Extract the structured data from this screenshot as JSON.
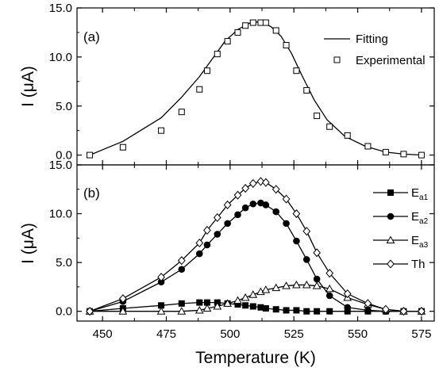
{
  "chart_data": [
    {
      "panel": "top",
      "type": "line+scatter",
      "label": "(a)",
      "xlabel": "Temperature (K)",
      "ylabel": "I (μA)",
      "xlim": [
        440,
        580
      ],
      "ylim": [
        -1,
        15
      ],
      "yticks": [
        0,
        5,
        10,
        15
      ],
      "ytick_labels": [
        "0.0",
        "5.0",
        "10.0",
        "15.0"
      ],
      "legend_position": "top-right",
      "series": [
        {
          "name": "Fitting",
          "style": "line",
          "x": [
            445,
            458,
            473,
            481,
            488,
            493,
            498,
            503,
            508,
            512,
            516,
            520,
            524,
            528,
            533,
            538,
            545,
            553,
            561,
            568,
            575
          ],
          "values": [
            0.0,
            1.4,
            3.8,
            5.9,
            8.0,
            9.8,
            11.6,
            12.8,
            13.5,
            13.6,
            13.1,
            12.1,
            10.4,
            8.2,
            5.6,
            3.6,
            1.9,
            0.9,
            0.3,
            0.1,
            0.0
          ]
        },
        {
          "name": "Experimental",
          "style": "marker",
          "marker": "open-square",
          "x": [
            445,
            458,
            473,
            481,
            488,
            491,
            495,
            499,
            503,
            506,
            509,
            512,
            514,
            518,
            522,
            526,
            530,
            534,
            539,
            546,
            554,
            561,
            568,
            575
          ],
          "values": [
            0.0,
            0.8,
            2.5,
            4.4,
            6.7,
            8.6,
            10.3,
            11.6,
            12.5,
            13.2,
            13.5,
            13.5,
            13.5,
            12.7,
            11.2,
            8.6,
            6.6,
            4.0,
            2.9,
            2.0,
            0.9,
            0.3,
            0.1,
            0.0
          ]
        }
      ]
    },
    {
      "panel": "bottom",
      "type": "line+scatter",
      "label": "(b)",
      "xlabel": "Temperature (K)",
      "ylabel": "I (μA)",
      "xlim": [
        440,
        580
      ],
      "ylim": [
        -1,
        15
      ],
      "yticks": [
        0,
        5,
        10,
        15
      ],
      "ytick_labels": [
        "0.0",
        "5.0",
        "10.0",
        "15.0"
      ],
      "xticks": [
        450,
        475,
        500,
        525,
        550,
        575
      ],
      "xtick_labels": [
        "450",
        "475",
        "500",
        "525",
        "550",
        "575"
      ],
      "legend_position": "top-right",
      "series": [
        {
          "name": "E",
          "subscript": "a1",
          "marker": "filled-square",
          "x": [
            445,
            458,
            473,
            481,
            488,
            491,
            495,
            499,
            503,
            506,
            509,
            512,
            514,
            518,
            522,
            526,
            530,
            534,
            539,
            546,
            554,
            561,
            568,
            575
          ],
          "values": [
            0.0,
            0.3,
            0.6,
            0.8,
            0.9,
            0.9,
            0.9,
            0.8,
            0.7,
            0.6,
            0.5,
            0.4,
            0.3,
            0.2,
            0.1,
            0.1,
            0.0,
            0.0,
            0.0,
            0.0,
            0.0,
            0.0,
            0.0,
            0.0
          ]
        },
        {
          "name": "E",
          "subscript": "a2",
          "marker": "filled-circle",
          "x": [
            445,
            458,
            473,
            481,
            488,
            491,
            495,
            499,
            503,
            506,
            509,
            512,
            514,
            518,
            522,
            526,
            530,
            534,
            539,
            546,
            554,
            561,
            568,
            575
          ],
          "values": [
            0.0,
            1.0,
            3.0,
            4.3,
            5.9,
            6.8,
            7.9,
            9.0,
            9.9,
            10.6,
            11.0,
            11.1,
            10.9,
            10.2,
            9.0,
            7.2,
            5.3,
            3.3,
            1.6,
            0.4,
            0.1,
            0.0,
            0.0,
            0.0
          ]
        },
        {
          "name": "E",
          "subscript": "a3",
          "marker": "open-triangle",
          "x": [
            445,
            458,
            473,
            481,
            488,
            491,
            495,
            499,
            503,
            506,
            509,
            512,
            514,
            518,
            522,
            526,
            530,
            534,
            539,
            546,
            554,
            561,
            568,
            575
          ],
          "values": [
            0.0,
            0.0,
            0.0,
            0.0,
            0.1,
            0.3,
            0.5,
            0.8,
            1.1,
            1.4,
            1.7,
            2.0,
            2.2,
            2.4,
            2.6,
            2.7,
            2.7,
            2.6,
            2.3,
            1.4,
            0.7,
            0.2,
            0.0,
            0.0
          ]
        },
        {
          "name": "Th",
          "subscript": "",
          "marker": "open-diamond",
          "x": [
            445,
            458,
            473,
            481,
            488,
            491,
            495,
            499,
            503,
            506,
            509,
            512,
            514,
            518,
            522,
            526,
            530,
            534,
            539,
            546,
            554,
            561,
            568,
            575
          ],
          "values": [
            0.0,
            1.3,
            3.5,
            5.2,
            7.0,
            8.3,
            9.6,
            10.9,
            11.9,
            12.6,
            13.1,
            13.3,
            13.2,
            12.5,
            11.5,
            10.0,
            8.2,
            6.0,
            3.9,
            1.8,
            0.8,
            0.2,
            0.0,
            0.0
          ]
        }
      ]
    }
  ]
}
